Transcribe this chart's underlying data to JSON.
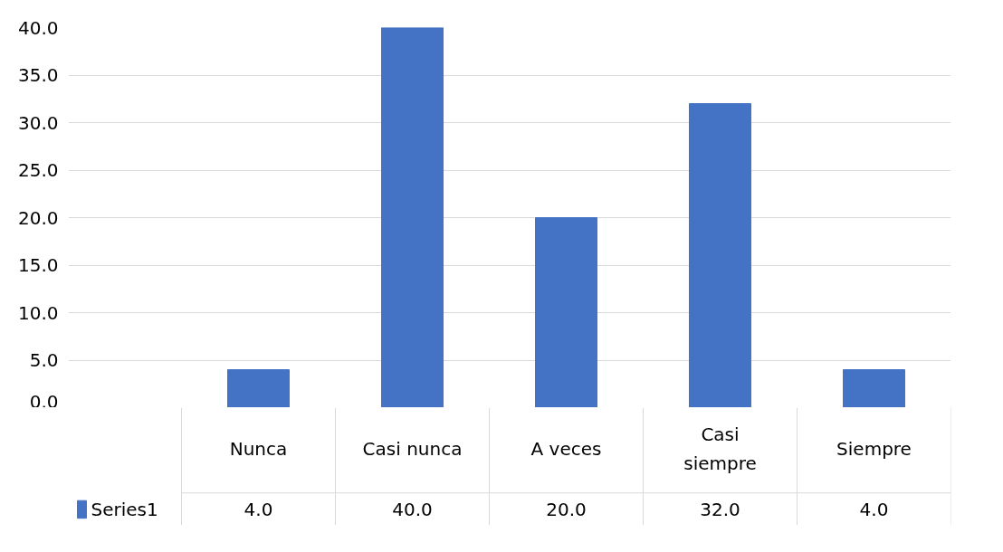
{
  "chart_data": {
    "type": "bar",
    "categories": [
      "Nunca",
      "Casi nunca",
      "A veces",
      "Casi siempre",
      "Siempre"
    ],
    "series": [
      {
        "name": "Series1",
        "color": "#4472c4",
        "values": [
          4,
          40,
          20,
          32,
          4
        ],
        "value_labels": [
          "4.0",
          "40.0",
          "20.0",
          "32.0",
          "4.0"
        ]
      }
    ],
    "ylim": [
      0,
      40
    ],
    "yticks": [
      {
        "value": 0,
        "label": "0.0"
      },
      {
        "value": 5,
        "label": "5.0"
      },
      {
        "value": 10,
        "label": "10.0"
      },
      {
        "value": 15,
        "label": "15.0"
      },
      {
        "value": 20,
        "label": "20.0"
      },
      {
        "value": 25,
        "label": "25.0"
      },
      {
        "value": 30,
        "label": "30.0"
      },
      {
        "value": 35,
        "label": "35.0"
      },
      {
        "value": 40,
        "label": "40.0"
      }
    ],
    "grid": "y",
    "legend": "bottom"
  }
}
